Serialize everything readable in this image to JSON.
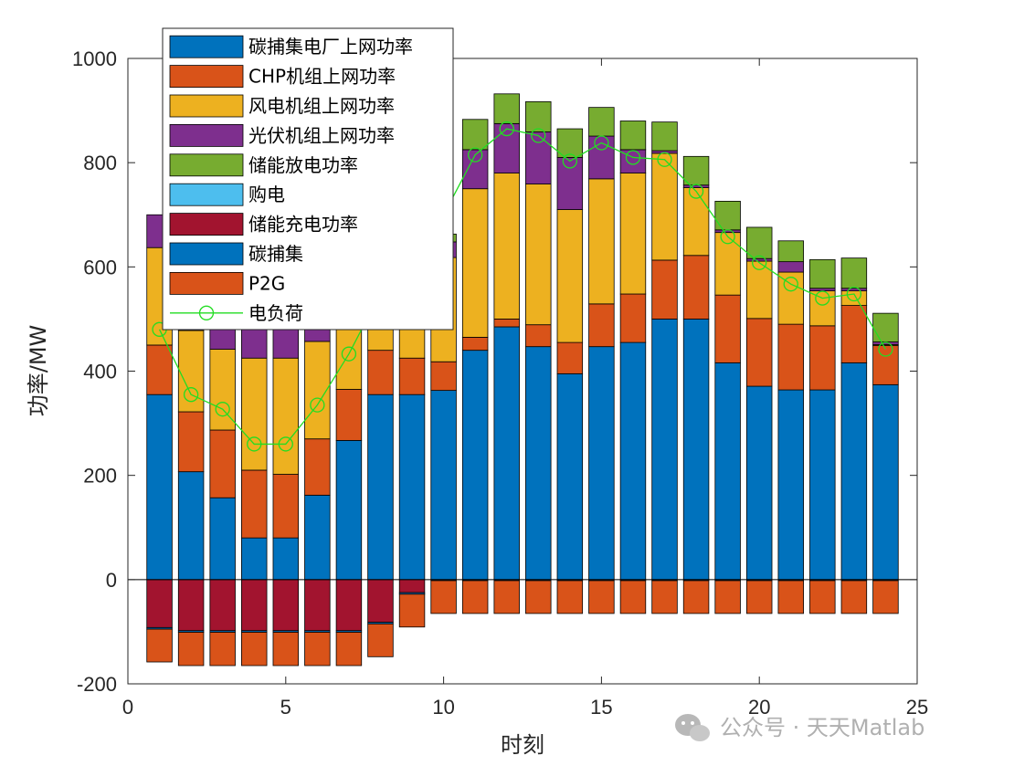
{
  "chart_data": {
    "type": "bar",
    "stacked": true,
    "x": [
      1,
      2,
      3,
      4,
      5,
      6,
      7,
      8,
      9,
      10,
      11,
      12,
      13,
      14,
      15,
      16,
      17,
      18,
      19,
      20,
      21,
      22,
      23,
      24
    ],
    "xlabel": "时刻",
    "ylabel": "功率/MW",
    "xlim": [
      0,
      25
    ],
    "ylim": [
      -200,
      1000
    ],
    "xticks": [
      0,
      5,
      10,
      15,
      20,
      25
    ],
    "yticks": [
      -200,
      0,
      200,
      400,
      600,
      800,
      1000
    ],
    "grid": false,
    "legend_position": "top-left (inside)",
    "series": [
      {
        "name": "碳捕集电厂上网功率",
        "color": "#0072BD",
        "stack": "positive",
        "values": [
          355,
          207,
          157,
          80,
          80,
          162,
          267,
          355,
          355,
          363,
          440,
          485,
          447,
          395,
          447,
          455,
          500,
          500,
          416,
          371,
          364,
          364,
          416,
          374
        ]
      },
      {
        "name": "CHP机组上网功率",
        "color": "#D95319",
        "stack": "positive",
        "values": [
          95,
          115,
          130,
          130,
          122,
          108,
          98,
          85,
          70,
          55,
          25,
          15,
          42,
          60,
          82,
          93,
          113,
          122,
          130,
          130,
          126,
          123,
          110,
          75
        ]
      },
      {
        "name": "风电机组上网功率",
        "color": "#EDB120",
        "stack": "positive",
        "values": [
          187,
          156,
          155,
          215,
          223,
          187,
          147,
          120,
          140,
          200,
          285,
          280,
          270,
          255,
          240,
          232,
          205,
          130,
          120,
          110,
          100,
          67,
          28,
          2
        ]
      },
      {
        "name": "光伏机组上网功率",
        "color": "#7E2F8E",
        "stack": "positive",
        "values": [
          63,
          52,
          55,
          65,
          65,
          50,
          25,
          5,
          15,
          30,
          75,
          95,
          100,
          100,
          82,
          45,
          5,
          5,
          5,
          5,
          20,
          5,
          5,
          5
        ]
      },
      {
        "name": "储能放电功率",
        "color": "#77AC30",
        "stack": "positive",
        "values": [
          0,
          0,
          0,
          0,
          0,
          0,
          0,
          0,
          0,
          15,
          58,
          57,
          58,
          55,
          55,
          55,
          55,
          55,
          55,
          60,
          40,
          55,
          58,
          55
        ]
      },
      {
        "name": "购电",
        "color": "#4DBEEE",
        "stack": "positive",
        "values": [
          0,
          0,
          0,
          0,
          0,
          0,
          0,
          0,
          0,
          0,
          0,
          0,
          0,
          0,
          0,
          0,
          0,
          0,
          0,
          0,
          0,
          0,
          0,
          0
        ]
      },
      {
        "name": "储能充电功率",
        "color": "#A2142F",
        "stack": "negative",
        "values": [
          -92,
          -98,
          -98,
          -98,
          -98,
          -98,
          -98,
          -82,
          -25,
          0,
          0,
          0,
          0,
          0,
          0,
          0,
          0,
          0,
          0,
          0,
          0,
          0,
          0,
          0
        ]
      },
      {
        "name": "碳捕集",
        "color": "#0072BD",
        "stack": "negative",
        "values": [
          -3,
          -3,
          -3,
          -3,
          -3,
          -3,
          -3,
          -3,
          -3,
          -2,
          -2,
          -2,
          -2,
          -2,
          -2,
          -2,
          -2,
          -2,
          -2,
          -2,
          -2,
          -2,
          -2,
          -2
        ]
      },
      {
        "name": "P2G",
        "color": "#D95319",
        "stack": "negative",
        "values": [
          -63,
          -64,
          -64,
          -64,
          -64,
          -64,
          -64,
          -63,
          -63,
          -63,
          -63,
          -63,
          -63,
          -63,
          -63,
          -63,
          -63,
          -63,
          -63,
          -63,
          -63,
          -63,
          -63,
          -63
        ]
      }
    ],
    "line": {
      "name": "电负荷",
      "color": "#22DD22",
      "values": [
        480,
        355,
        327,
        260,
        260,
        335,
        433,
        550,
        600,
        700,
        815,
        865,
        852,
        803,
        838,
        810,
        806,
        745,
        658,
        608,
        567,
        540,
        548,
        442
      ]
    },
    "colors": {
      "axis": "#262626",
      "edge": "#000000"
    }
  },
  "legend": {
    "entries": [
      "碳捕集电厂上网功率",
      "CHP机组上网功率",
      "风电机组上网功率",
      "光伏机组上网功率",
      "储能放电功率",
      "购电",
      "储能充电功率",
      "碳捕集",
      "P2G",
      "电负荷"
    ]
  },
  "watermark": {
    "text": "公众号 · 天天Matlab",
    "icon": "wechat-icon"
  }
}
